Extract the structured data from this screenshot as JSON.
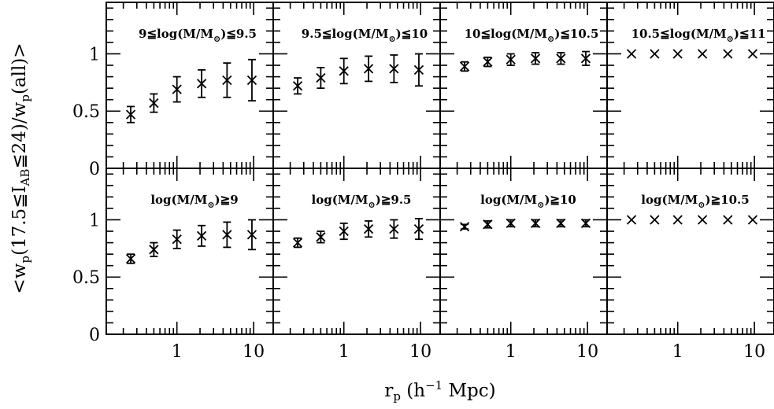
{
  "chart_data": {
    "type": "scatter",
    "layout": {
      "rows": 2,
      "cols": 4
    },
    "x_axis": {
      "label_main": "r",
      "label_sub": "p",
      "label_rest": " (h",
      "label_sup": "−1",
      "label_end": " Mpc)",
      "scale": "log",
      "xlim": [
        0.12,
        18
      ],
      "tick_values": [
        1,
        10
      ],
      "tick_labels": [
        "1",
        "10"
      ]
    },
    "y_axis": {
      "parts": [
        {
          "t": "<w",
          "s": "normal"
        },
        {
          "t": "p",
          "s": "sub"
        },
        {
          "t": "(17.5≦I",
          "s": "normal"
        },
        {
          "t": "AB",
          "s": "sub"
        },
        {
          "t": "≦24)/w",
          "s": "normal"
        },
        {
          "t": "p",
          "s": "sub"
        },
        {
          "t": "(all)>",
          "s": "normal"
        }
      ],
      "ylim": [
        0,
        1.45
      ],
      "tick_values": [
        0,
        0.5,
        1
      ],
      "tick_labels": [
        "0",
        "0.5",
        "1"
      ]
    },
    "x": [
      0.25,
      0.5,
      1.0,
      2.1,
      4.5,
      9.5
    ],
    "panels": [
      {
        "row": 0,
        "col": 0,
        "label_parts": [
          {
            "t": "9≦log(M/M",
            "s": "normal"
          },
          {
            "t": "⊙",
            "s": "sub"
          },
          {
            "t": ")≦9.5",
            "s": "normal"
          }
        ],
        "y": [
          0.47,
          0.57,
          0.69,
          0.74,
          0.77,
          0.77
        ],
        "yerr": [
          0.07,
          0.08,
          0.11,
          0.12,
          0.15,
          0.18
        ]
      },
      {
        "row": 0,
        "col": 1,
        "label_parts": [
          {
            "t": "9.5≦log(M/M",
            "s": "normal"
          },
          {
            "t": "⊙",
            "s": "sub"
          },
          {
            "t": ")≦10",
            "s": "normal"
          }
        ],
        "y": [
          0.72,
          0.79,
          0.85,
          0.87,
          0.87,
          0.86
        ],
        "yerr": [
          0.07,
          0.09,
          0.11,
          0.11,
          0.12,
          0.14
        ]
      },
      {
        "row": 0,
        "col": 2,
        "label_parts": [
          {
            "t": "10≦log(M/M",
            "s": "normal"
          },
          {
            "t": "⊙",
            "s": "sub"
          },
          {
            "t": ")≦10.5",
            "s": "normal"
          }
        ],
        "y": [
          0.89,
          0.93,
          0.95,
          0.96,
          0.96,
          0.96
        ],
        "yerr": [
          0.04,
          0.04,
          0.05,
          0.05,
          0.05,
          0.06
        ]
      },
      {
        "row": 0,
        "col": 3,
        "label_parts": [
          {
            "t": "10.5≦log(M/M",
            "s": "normal"
          },
          {
            "t": "⊙",
            "s": "sub"
          },
          {
            "t": ")≦11",
            "s": "normal"
          }
        ],
        "y": [
          1.0,
          1.0,
          1.0,
          1.0,
          1.0,
          1.0
        ],
        "yerr": [
          0.0,
          0.0,
          0.0,
          0.0,
          0.0,
          0.0
        ]
      },
      {
        "row": 1,
        "col": 0,
        "label_parts": [
          {
            "t": "log(M/M",
            "s": "normal"
          },
          {
            "t": "⊙",
            "s": "sub"
          },
          {
            "t": ")≧9",
            "s": "normal"
          }
        ],
        "y": [
          0.66,
          0.74,
          0.83,
          0.86,
          0.87,
          0.87
        ],
        "yerr": [
          0.04,
          0.06,
          0.08,
          0.09,
          0.11,
          0.13
        ]
      },
      {
        "row": 1,
        "col": 1,
        "label_parts": [
          {
            "t": "log(M/M",
            "s": "normal"
          },
          {
            "t": "⊙",
            "s": "sub"
          },
          {
            "t": ")≧9.5",
            "s": "normal"
          }
        ],
        "y": [
          0.8,
          0.85,
          0.9,
          0.92,
          0.92,
          0.92
        ],
        "yerr": [
          0.04,
          0.05,
          0.07,
          0.07,
          0.08,
          0.09
        ]
      },
      {
        "row": 1,
        "col": 2,
        "label_parts": [
          {
            "t": "log(M/M",
            "s": "normal"
          },
          {
            "t": "⊙",
            "s": "sub"
          },
          {
            "t": ")≧10",
            "s": "normal"
          }
        ],
        "y": [
          0.94,
          0.96,
          0.97,
          0.97,
          0.97,
          0.97
        ],
        "yerr": [
          0.02,
          0.03,
          0.03,
          0.03,
          0.03,
          0.03
        ]
      },
      {
        "row": 1,
        "col": 3,
        "label_parts": [
          {
            "t": "log(M/M",
            "s": "normal"
          },
          {
            "t": "⊙",
            "s": "sub"
          },
          {
            "t": ")≧10.5",
            "s": "normal"
          }
        ],
        "y": [
          1.0,
          1.0,
          1.0,
          1.0,
          1.0,
          1.0
        ],
        "yerr": [
          0.0,
          0.0,
          0.0,
          0.0,
          0.0,
          0.0
        ]
      }
    ]
  }
}
